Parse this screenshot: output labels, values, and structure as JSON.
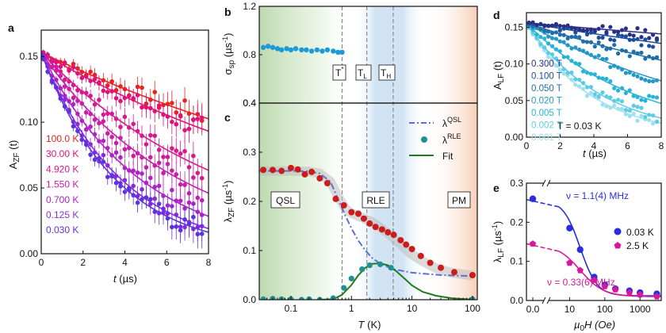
{
  "chart_data": [
    {
      "panel": "a",
      "type": "scatter",
      "xlabel": "t (µs)",
      "ylabel": "A_ZF (t)",
      "xlim": [
        0,
        8
      ],
      "ylim": [
        0,
        0.17
      ],
      "xticks": [
        "0",
        "2",
        "4",
        "6",
        "8"
      ],
      "yticks": [
        "0.00",
        "0.05",
        "0.10",
        "0.15"
      ],
      "series": [
        {
          "name": "100.0 K",
          "color": "#e8231c",
          "A0": 0.153,
          "lambda": 0.05,
          "beta": 1.0,
          "base": 0.0
        },
        {
          "name": "30.00 K",
          "color": "#e0127a",
          "A0": 0.153,
          "lambda": 0.062,
          "beta": 1.0,
          "base": 0.0
        },
        {
          "name": "4.920 K",
          "color": "#d7198f",
          "A0": 0.153,
          "lambda": 0.11,
          "beta": 1.0,
          "base": 0.0
        },
        {
          "name": "1.550 K",
          "color": "#c81fa6",
          "A0": 0.153,
          "lambda": 0.15,
          "beta": 1.0,
          "base": 0.0
        },
        {
          "name": "0.700 K",
          "color": "#b022c4",
          "A0": 0.153,
          "lambda": 0.21,
          "beta": 1.0,
          "base": 0.0
        },
        {
          "name": "0.125 K",
          "color": "#8a2bd9",
          "A0": 0.153,
          "lambda": 0.26,
          "beta": 1.0,
          "base": 0.0
        },
        {
          "name": "0.030 K",
          "color": "#5b33e0",
          "A0": 0.153,
          "lambda": 0.28,
          "beta": 1.0,
          "base": 0.0
        }
      ]
    },
    {
      "panel": "b",
      "type": "scatter",
      "ylabel": "σ_sp (µs⁻¹)",
      "ylim": [
        0.4,
        1.2
      ],
      "yticks": [
        "0.4",
        "0.8",
        "1.2"
      ],
      "x": [
        0.035,
        0.042,
        0.05,
        0.06,
        0.07,
        0.085,
        0.1,
        0.12,
        0.15,
        0.18,
        0.22,
        0.27,
        0.33,
        0.4,
        0.5,
        0.6,
        0.7
      ],
      "y": [
        0.86,
        0.87,
        0.86,
        0.85,
        0.84,
        0.85,
        0.84,
        0.85,
        0.84,
        0.84,
        0.83,
        0.84,
        0.83,
        0.84,
        0.83,
        0.82,
        0.82
      ],
      "color": "#1a9ad8",
      "markers": [
        "T*",
        "T_L",
        "T_H"
      ],
      "marker_x": [
        0.7,
        1.8,
        4.9
      ]
    },
    {
      "panel": "c",
      "type": "scatter",
      "xlabel": "T (K)",
      "ylabel": "λ_ZF (µs⁻¹)",
      "xlim": [
        0.03,
        120
      ],
      "ylim": [
        0,
        0.4
      ],
      "xticks": [
        "0.1",
        "1",
        "10",
        "100"
      ],
      "yticks": [
        "0.0",
        "0.1",
        "0.2",
        "0.3",
        "0.4"
      ],
      "region_labels": [
        "QSL",
        "RLE",
        "PM"
      ],
      "legend": [
        "λ^QSL",
        "λ^RLE",
        "Fit"
      ],
      "red_points": {
        "x": [
          0.035,
          0.05,
          0.07,
          0.1,
          0.13,
          0.17,
          0.22,
          0.3,
          0.4,
          0.55,
          0.75,
          1.0,
          1.3,
          1.6,
          2.0,
          2.5,
          3.2,
          4.0,
          5.0,
          6.5,
          8.0,
          10,
          14,
          20,
          30,
          50,
          100
        ],
        "y": [
          0.264,
          0.264,
          0.262,
          0.268,
          0.265,
          0.255,
          0.26,
          0.247,
          0.237,
          0.205,
          0.192,
          0.178,
          0.175,
          0.165,
          0.155,
          0.148,
          0.143,
          0.137,
          0.132,
          0.121,
          0.112,
          0.103,
          0.089,
          0.075,
          0.065,
          0.056,
          0.05
        ]
      },
      "green_points": {
        "x": [
          0.035,
          0.05,
          0.07,
          0.1,
          0.15,
          0.2,
          0.3,
          0.5,
          0.75,
          1.0,
          1.5,
          2.0,
          3.0,
          4.5,
          100
        ],
        "y": [
          0.001,
          0.002,
          0.001,
          0.001,
          0.0,
          0.001,
          0.0,
          0.003,
          0.024,
          0.043,
          0.062,
          0.07,
          0.072,
          0.065,
          0.001
        ]
      },
      "qsl_line": {
        "x": [
          0.03,
          0.1,
          0.2,
          0.3,
          0.45,
          0.6,
          0.8,
          1.0,
          1.3,
          1.7,
          2.2,
          3.0,
          5.0,
          10,
          30,
          100
        ],
        "y": [
          0.262,
          0.262,
          0.261,
          0.257,
          0.24,
          0.205,
          0.17,
          0.145,
          0.12,
          0.1,
          0.085,
          0.073,
          0.062,
          0.055,
          0.05,
          0.048
        ]
      },
      "fit_line": {
        "x": [
          0.3,
          0.5,
          0.7,
          1.0,
          1.3,
          1.7,
          2.2,
          3.0,
          4.0,
          5.5,
          7.5,
          10,
          15,
          25,
          45,
          80,
          100
        ],
        "y": [
          0.0,
          0.001,
          0.01,
          0.03,
          0.05,
          0.065,
          0.073,
          0.074,
          0.07,
          0.058,
          0.043,
          0.029,
          0.016,
          0.008,
          0.003,
          0.001,
          0.0
        ]
      },
      "envelope": {
        "x": [
          0.03,
          0.1,
          0.2,
          0.3,
          0.45,
          0.6,
          0.8,
          1.0,
          1.3,
          1.7,
          2.2,
          3.0,
          4.0,
          5.5,
          7.5,
          10,
          15,
          25,
          45,
          100
        ],
        "y": [
          0.262,
          0.262,
          0.261,
          0.257,
          0.24,
          0.21,
          0.185,
          0.176,
          0.17,
          0.164,
          0.158,
          0.147,
          0.135,
          0.12,
          0.105,
          0.092,
          0.078,
          0.064,
          0.055,
          0.049
        ]
      }
    },
    {
      "panel": "d",
      "type": "scatter",
      "xlabel": "t (µs)",
      "ylabel": "A_LF (t)",
      "xlim": [
        0,
        8
      ],
      "ylim": [
        0,
        0.17
      ],
      "xticks": [
        "0",
        "2",
        "4",
        "6",
        "8"
      ],
      "yticks": [
        "0.00",
        "0.05",
        "0.10",
        "0.15"
      ],
      "annotation": "T = 0.03 K",
      "series": [
        {
          "name": "0.300 T",
          "color": "#2a2f86",
          "A0": 0.156,
          "end": 0.141
        },
        {
          "name": "0.100 T",
          "color": "#1c4e9a",
          "A0": 0.156,
          "end": 0.128
        },
        {
          "name": "0.050 T",
          "color": "#1f6eaa",
          "A0": 0.156,
          "end": 0.105
        },
        {
          "name": "0.020 T",
          "color": "#2497c4",
          "A0": 0.156,
          "end": 0.077
        },
        {
          "name": "0.005 T",
          "color": "#27b4d6",
          "A0": 0.156,
          "end": 0.046
        },
        {
          "name": "0.002 T",
          "color": "#5ccbe4",
          "A0": 0.156,
          "end": 0.026
        },
        {
          "name": "0.001 T",
          "color": "#9fe0ef",
          "A0": 0.156,
          "end": 0.019
        }
      ]
    },
    {
      "panel": "e",
      "type": "scatter",
      "xlabel": "µ0H (Oe)",
      "ylabel": "λ_LF (µs⁻¹)",
      "ylim": [
        0,
        0.3
      ],
      "xticks": [
        "0.0",
        "10",
        "100",
        "1000"
      ],
      "yticks": [
        "0.0",
        "0.1",
        "0.2",
        "0.3"
      ],
      "series": [
        {
          "name": "0.03 K",
          "color": "#2a2ee0",
          "x": [
            0,
            10,
            20,
            50,
            100,
            200,
            500,
            1000,
            3000
          ],
          "y": [
            0.26,
            0.185,
            0.13,
            0.06,
            0.04,
            0.03,
            0.025,
            0.02,
            0.017
          ],
          "fit_y0": 0.258,
          "fit_y1": 0.012,
          "fit_h": 20,
          "fit_n": 1.8
        },
        {
          "name": "2.5 K",
          "color": "#d6189c",
          "x": [
            0,
            10,
            20,
            50,
            100,
            200,
            500,
            1000,
            3000
          ],
          "y": [
            0.145,
            0.096,
            0.077,
            0.052,
            0.036,
            0.028,
            0.02,
            0.015,
            0.01
          ],
          "fit_y0": 0.145,
          "fit_y1": 0.01,
          "fit_h": 20,
          "fit_n": 1.3
        }
      ],
      "annotations": [
        "ν = 1.1(4) MHz",
        "ν = 0.33(6) MHz"
      ]
    }
  ],
  "labels": {
    "panel_a": "a",
    "panel_b": "b",
    "panel_c": "c",
    "panel_d": "d",
    "panel_e": "e",
    "t_star": "T",
    "t_star_sup": "*",
    "t_l": "T",
    "t_l_sub": "L",
    "t_h": "T",
    "t_h_sub": "H",
    "qsl": "QSL",
    "rle": "RLE",
    "pm": "PM",
    "legend_qsl": "λ",
    "legend_qsl_sup": "QSL",
    "legend_rle": "λ",
    "legend_rle_sup": "RLE",
    "legend_fit": "Fit",
    "a_xlabel_t": "t",
    "a_xlabel_unit": " (µs)",
    "a_ylabel_A": "A",
    "a_ylabel_sub": "ZF",
    "a_ylabel_rest": " (t)",
    "b_ylabel_sigma": "σ",
    "b_ylabel_sub": "sp",
    "b_ylabel_rest": " (µs",
    "b_ylabel_sup": "-1",
    "b_ylabel_close": ")",
    "c_xlabel": "T",
    "c_xlabel_unit": " (K)",
    "c_ylabel_lambda": "λ",
    "c_ylabel_sub": "ZF",
    "c_ylabel_rest": " (µs",
    "c_ylabel_sup": "-1",
    "c_ylabel_close": ")",
    "d_ylabel_A": "A",
    "d_ylabel_sub": "LF",
    "d_ylabel_rest": " (t)",
    "d_xlabel_t": "t",
    "d_xlabel_unit": " (µs)",
    "d_temp": "T = 0.03 K",
    "e_ylabel_lambda": "λ",
    "e_ylabel_sub": "LF",
    "e_ylabel_rest": " (µs",
    "e_ylabel_sup": "-1",
    "e_ylabel_close": ")",
    "e_xlabel_mu": "µ",
    "e_xlabel_sub": "0",
    "e_xlabel_rest": "H (Oe)",
    "e_nu1": "ν = 1.1(4) MHz",
    "e_nu2": "ν = 0.33(6) MHz",
    "e_leg1": "0.03 K",
    "e_leg2": "2.5 K"
  },
  "colors": {
    "frame": "#111111",
    "qsl_bg": "#6aab4b",
    "rle_bg": "#7fb3e0",
    "pm_bg": "#f0a77a",
    "red": "#cc1b1b",
    "teal": "#1f8f8f",
    "qsl_line": "#5a6fd8",
    "fit_line": "#1f7a1f",
    "envelope": "#bdbdbd",
    "sigma": "#1a9ad8"
  }
}
